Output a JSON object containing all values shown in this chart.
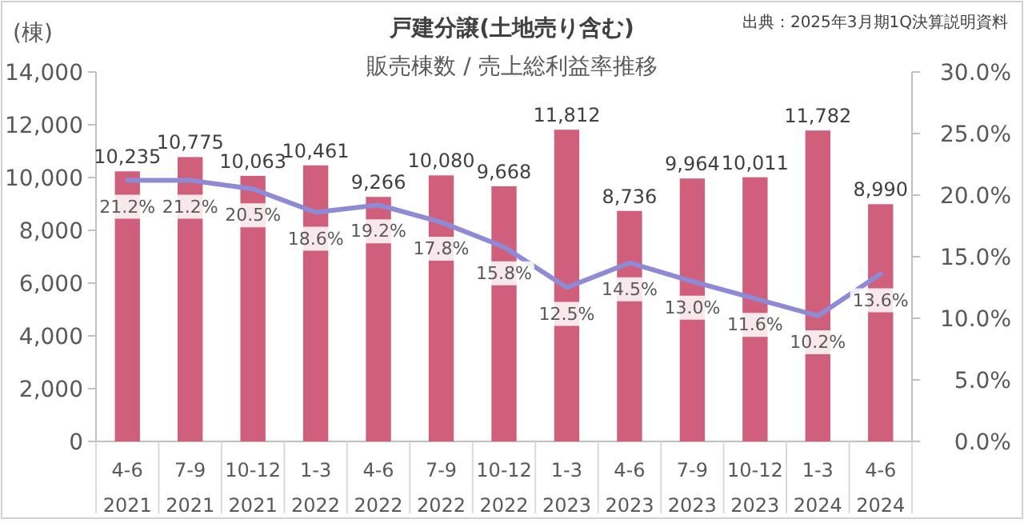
{
  "chart_data": {
    "type": "bar",
    "title": "戸建分譲(土地売り含む)",
    "subtitle": "販売棟数 / 売上総利益率推移",
    "ylabel": "(棟)",
    "annotations": [
      "出典：2025年3月期1Q決算説明資料"
    ],
    "categories": [
      "4-6\n2021",
      "7-9\n2021",
      "10-12\n2021",
      "1-3\n2022",
      "4-6\n2022",
      "7-9\n2022",
      "10-12\n2022",
      "1-3\n2023",
      "4-6\n2023",
      "7-9\n2023",
      "10-12\n2023",
      "1-3\n2024",
      "4-6\n2024"
    ],
    "ylim": [
      0,
      14000
    ],
    "yticks": [
      {
        "value": 0,
        "label": "0"
      },
      {
        "value": 2000,
        "label": "2,000"
      },
      {
        "value": 4000,
        "label": "4,000"
      },
      {
        "value": 6000,
        "label": "6,000"
      },
      {
        "value": 8000,
        "label": "8,000"
      },
      {
        "value": 10000,
        "label": "10,000"
      },
      {
        "value": 12000,
        "label": "12,000"
      },
      {
        "value": 14000,
        "label": "14,000"
      }
    ],
    "y2lim": [
      0,
      30
    ],
    "y2ticks": [
      {
        "value": 0,
        "label": "0.0%"
      },
      {
        "value": 5,
        "label": "5.0%"
      },
      {
        "value": 10,
        "label": "10.0%"
      },
      {
        "value": 15,
        "label": "15.0%"
      },
      {
        "value": 20,
        "label": "20.0%"
      },
      {
        "value": 25,
        "label": "25.0%"
      },
      {
        "value": 30,
        "label": "30.0%"
      }
    ],
    "series": [
      {
        "color": "#cf5f7b",
        "values": [
          10235,
          10775,
          10063,
          10461,
          9266,
          10080,
          9668,
          11812,
          8736,
          9964,
          10011,
          11782,
          8990
        ],
        "value_labels": [
          "10,235",
          "10,775",
          "10,063",
          "10,461",
          "9,266",
          "10,080",
          "9,668",
          "11,812",
          "8,736",
          "9,964",
          "10,011",
          "11,782",
          "8,990"
        ]
      },
      {
        "type": "line",
        "axis": "y2",
        "color": "#8e8ad6",
        "values": [
          21.2,
          21.2,
          20.5,
          18.6,
          19.2,
          17.8,
          15.8,
          12.5,
          14.5,
          13.0,
          11.6,
          10.2,
          13.6
        ],
        "value_labels": [
          "21.2%",
          "21.2%",
          "20.5%",
          "18.6%",
          "19.2%",
          "17.8%",
          "15.8%",
          "12.5%",
          "14.5%",
          "13.0%",
          "11.6%",
          "10.2%",
          "13.6%"
        ]
      }
    ]
  }
}
